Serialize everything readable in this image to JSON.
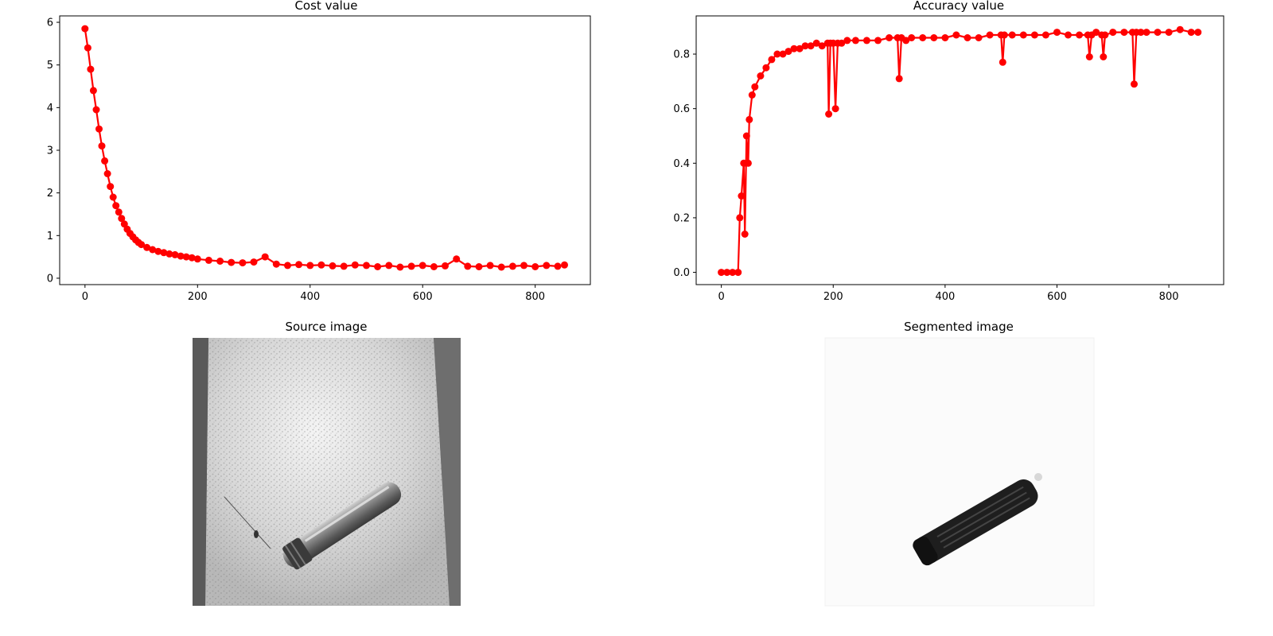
{
  "chart_data": [
    {
      "type": "line",
      "title": "Cost value",
      "xlabel": "",
      "ylabel": "",
      "xlim": [
        -45,
        898
      ],
      "ylim": [
        -0.15,
        6.15
      ],
      "xticks": [
        0,
        200,
        400,
        600,
        800
      ],
      "yticks": [
        0,
        1,
        2,
        3,
        4,
        5,
        6
      ],
      "xtick_labels": [
        "0",
        "200",
        "400",
        "600",
        "800"
      ],
      "ytick_labels": [
        "0",
        "1",
        "2",
        "3",
        "4",
        "5",
        "6"
      ],
      "series": [
        {
          "color": "#ff0000",
          "marker": "circle",
          "x": [
            0,
            5,
            10,
            15,
            20,
            25,
            30,
            35,
            40,
            45,
            50,
            55,
            60,
            65,
            70,
            75,
            80,
            85,
            90,
            95,
            100,
            110,
            120,
            130,
            140,
            150,
            160,
            170,
            180,
            190,
            200,
            220,
            240,
            260,
            280,
            300,
            320,
            340,
            360,
            380,
            400,
            420,
            440,
            460,
            480,
            500,
            520,
            540,
            560,
            580,
            600,
            620,
            640,
            660,
            680,
            700,
            720,
            740,
            760,
            780,
            800,
            820,
            840,
            852
          ],
          "y": [
            5.85,
            5.4,
            4.9,
            4.4,
            3.95,
            3.5,
            3.1,
            2.75,
            2.45,
            2.15,
            1.9,
            1.7,
            1.55,
            1.4,
            1.27,
            1.15,
            1.05,
            0.97,
            0.9,
            0.84,
            0.79,
            0.72,
            0.67,
            0.63,
            0.6,
            0.57,
            0.55,
            0.52,
            0.5,
            0.48,
            0.45,
            0.42,
            0.4,
            0.37,
            0.36,
            0.38,
            0.5,
            0.33,
            0.3,
            0.32,
            0.3,
            0.31,
            0.29,
            0.28,
            0.31,
            0.3,
            0.27,
            0.3,
            0.26,
            0.28,
            0.3,
            0.27,
            0.29,
            0.45,
            0.28,
            0.27,
            0.3,
            0.26,
            0.28,
            0.3,
            0.27,
            0.3,
            0.28,
            0.31
          ]
        }
      ]
    },
    {
      "type": "line",
      "title": "Accuracy value",
      "xlabel": "",
      "ylabel": "",
      "xlim": [
        -45,
        898
      ],
      "ylim": [
        -0.045,
        0.94
      ],
      "xticks": [
        0,
        200,
        400,
        600,
        800
      ],
      "yticks": [
        0,
        0.2,
        0.4,
        0.6,
        0.8
      ],
      "xtick_labels": [
        "0",
        "200",
        "400",
        "600",
        "800"
      ],
      "ytick_labels": [
        "0.0",
        "0.2",
        "0.4",
        "0.6",
        "0.8"
      ],
      "series": [
        {
          "color": "#ff0000",
          "marker": "circle",
          "x": [
            0,
            10,
            20,
            30,
            33,
            36,
            40,
            42,
            45,
            48,
            50,
            55,
            60,
            70,
            80,
            90,
            100,
            110,
            120,
            130,
            140,
            150,
            160,
            170,
            180,
            190,
            192,
            195,
            200,
            204,
            208,
            215,
            225,
            240,
            260,
            280,
            300,
            315,
            318,
            322,
            330,
            340,
            360,
            380,
            400,
            420,
            440,
            460,
            480,
            500,
            503,
            506,
            520,
            540,
            560,
            580,
            600,
            620,
            640,
            655,
            658,
            662,
            670,
            680,
            683,
            686,
            700,
            720,
            735,
            738,
            742,
            750,
            760,
            780,
            800,
            820,
            840,
            852
          ],
          "y": [
            0,
            0,
            0,
            0,
            0.2,
            0.28,
            0.4,
            0.14,
            0.5,
            0.4,
            0.56,
            0.65,
            0.68,
            0.72,
            0.75,
            0.78,
            0.8,
            0.8,
            0.81,
            0.82,
            0.82,
            0.83,
            0.83,
            0.84,
            0.83,
            0.84,
            0.58,
            0.84,
            0.84,
            0.6,
            0.84,
            0.84,
            0.85,
            0.85,
            0.85,
            0.85,
            0.86,
            0.86,
            0.71,
            0.86,
            0.85,
            0.86,
            0.86,
            0.86,
            0.86,
            0.87,
            0.86,
            0.86,
            0.87,
            0.87,
            0.77,
            0.87,
            0.87,
            0.87,
            0.87,
            0.87,
            0.88,
            0.87,
            0.87,
            0.87,
            0.79,
            0.87,
            0.88,
            0.87,
            0.79,
            0.87,
            0.88,
            0.88,
            0.88,
            0.69,
            0.88,
            0.88,
            0.88,
            0.88,
            0.88,
            0.89,
            0.88,
            0.88
          ]
        }
      ]
    }
  ],
  "images": {
    "source": {
      "title": "Source image"
    },
    "segmented": {
      "title": "Segmented image"
    }
  }
}
